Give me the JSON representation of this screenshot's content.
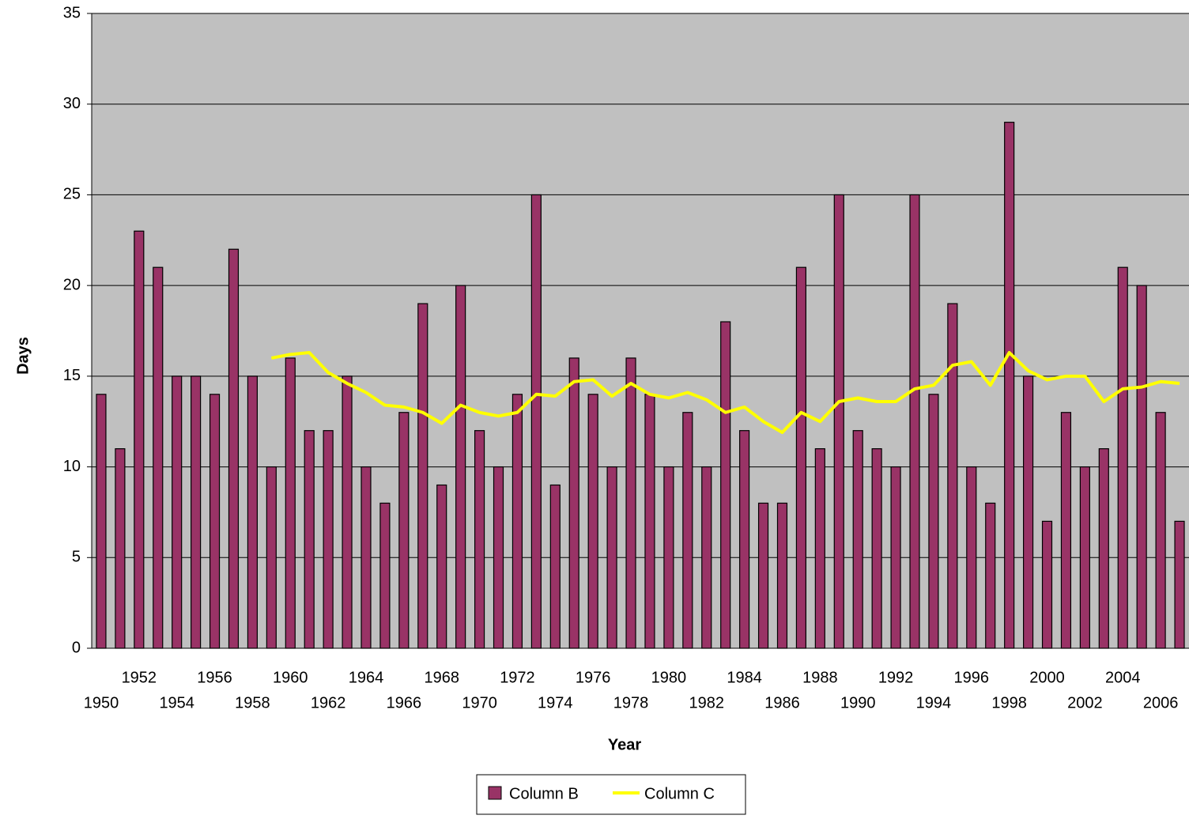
{
  "chart_data": {
    "type": "bar",
    "x_label": "Year",
    "y_label": "Days",
    "categories": [
      "1950",
      null,
      "1952",
      null,
      "1954",
      null,
      "1956",
      null,
      "1958",
      null,
      "1960",
      null,
      "1962",
      null,
      "1964",
      null,
      "1966",
      null,
      "1968",
      null,
      "1970",
      null,
      "1972",
      null,
      "1974",
      null,
      "1976",
      null,
      "1978",
      null,
      "1980",
      null,
      "1982",
      null,
      "1984",
      null,
      "1986",
      null,
      "1988",
      null,
      "1990",
      null,
      "1992",
      null,
      "1994",
      null,
      "1996",
      null,
      "1998",
      null,
      "2000",
      null,
      "2002",
      null,
      "2004",
      null,
      "2006",
      null
    ],
    "series": [
      {
        "name": "Column B",
        "type": "bar",
        "color": "#993366",
        "values": [
          14,
          11,
          23,
          21,
          15,
          15,
          14,
          22,
          15,
          10,
          16,
          12,
          12,
          15,
          10,
          8,
          13,
          19,
          9,
          20,
          12,
          10,
          14,
          25,
          9,
          16,
          14,
          10,
          16,
          14,
          10,
          13,
          10,
          18,
          12,
          8,
          8,
          21,
          11,
          25,
          12,
          11,
          10,
          25,
          14,
          19,
          10,
          8,
          29,
          15,
          7,
          13,
          10,
          11,
          21,
          20,
          13,
          7
        ]
      },
      {
        "name": "Column C",
        "type": "line",
        "color": "#ffff00",
        "values": [
          null,
          null,
          null,
          null,
          null,
          null,
          null,
          null,
          null,
          16.0,
          16.2,
          16.3,
          15.2,
          14.6,
          14.1,
          13.4,
          13.3,
          13.0,
          12.4,
          13.4,
          13.0,
          12.8,
          13.0,
          14.0,
          13.9,
          14.7,
          14.8,
          13.9,
          14.6,
          14.0,
          13.8,
          14.1,
          13.7,
          13.0,
          13.3,
          12.5,
          11.9,
          13.0,
          12.5,
          13.6,
          13.8,
          13.6,
          13.6,
          14.3,
          14.5,
          15.6,
          15.8,
          14.5,
          16.3,
          15.3,
          14.8,
          15.0,
          15.0,
          13.6,
          14.3,
          14.4,
          14.7,
          14.6
        ]
      }
    ],
    "ylim": [
      0,
      35
    ],
    "yticks": [
      0,
      5,
      10,
      15,
      20,
      25,
      30,
      35
    ],
    "grid": true
  }
}
